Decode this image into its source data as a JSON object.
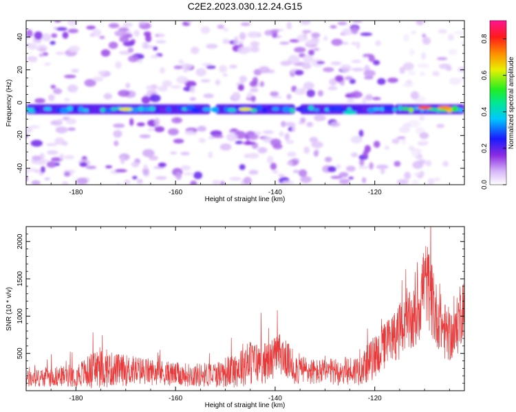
{
  "title": "C2E2.2023.030.12.24.G15",
  "chart_data": [
    {
      "type": "heatmap",
      "xlabel": "Height of straight line (km)",
      "ylabel": "Frequency (Hz)",
      "xlim": [
        -190,
        -102
      ],
      "ylim": [
        -50,
        50
      ],
      "xticks": [
        -180,
        -160,
        -140,
        -120
      ],
      "xtick_labels": [
        "-180",
        "-160",
        "-140",
        "-120"
      ],
      "yticks": [
        -40,
        -20,
        0,
        20,
        40
      ],
      "ytick_labels": [
        "-40",
        "-20",
        "0",
        "20",
        "40"
      ],
      "colorbar": {
        "label": "Normalized spectral amplitude",
        "range": [
          0,
          0.9
        ],
        "ticks": [
          0.0,
          0.2,
          0.4,
          0.6,
          0.8
        ],
        "tick_labels": [
          "0.0",
          "0.2",
          "0.4",
          "0.6",
          "0.8"
        ],
        "colormap": "rainbow (white-purple-blue-cyan-green-yellow-red-magenta)"
      },
      "signal_band": {
        "frequency_hz": -4,
        "width_hz": 6,
        "segments": [
          {
            "x_start": -190,
            "x_end": -153,
            "amplitude": 0.45
          },
          {
            "x_start": -152,
            "x_end": -136,
            "amplitude": 0.5
          },
          {
            "x_start": -135,
            "x_end": -116,
            "amplitude": 0.45
          },
          {
            "x_start": -116,
            "x_end": -102,
            "amplitude": 0.75
          }
        ],
        "peaks": [
          {
            "x": -170,
            "f": -4,
            "amplitude": 0.7
          },
          {
            "x": -146,
            "f": -4,
            "amplitude": 0.7
          },
          {
            "x": -125,
            "f": -6,
            "amplitude": 0.45
          },
          {
            "x": -110,
            "f": -3,
            "amplitude": 0.85
          },
          {
            "x": -106,
            "f": -3,
            "amplitude": 0.8
          }
        ]
      }
    },
    {
      "type": "line",
      "xlabel": "Height of straight line (km)",
      "ylabel": "SNR (10 * v/v)",
      "xlim": [
        -190,
        -102
      ],
      "ylim": [
        0,
        2200
      ],
      "xticks": [
        -180,
        -160,
        -140,
        -120
      ],
      "xtick_labels": [
        "-180",
        "-160",
        "-140",
        "-120"
      ],
      "yticks": [
        500,
        1000,
        1500,
        2000
      ],
      "ytick_labels": [
        "500",
        "1000",
        "1500",
        "2000"
      ],
      "color": "#e83a3a",
      "envelope": {
        "x": [
          -190,
          -186,
          -182,
          -178,
          -176,
          -172,
          -168,
          -164,
          -160,
          -156,
          -152,
          -148,
          -146,
          -142,
          -139,
          -136,
          -132,
          -128,
          -124,
          -122,
          -120,
          -118,
          -116,
          -114,
          -112,
          -111,
          -110,
          -109,
          -108,
          -107,
          -106,
          -105,
          -104,
          -103,
          -102
        ],
        "base": [
          150,
          180,
          200,
          240,
          300,
          280,
          270,
          250,
          220,
          210,
          220,
          280,
          380,
          370,
          500,
          300,
          250,
          250,
          270,
          330,
          450,
          600,
          750,
          850,
          950,
          1200,
          1500,
          1350,
          1050,
          950,
          800,
          750,
          700,
          1000,
          1200
        ],
        "amp": [
          150,
          160,
          180,
          250,
          350,
          280,
          250,
          220,
          200,
          200,
          220,
          300,
          400,
          350,
          350,
          280,
          220,
          230,
          260,
          300,
          380,
          400,
          450,
          500,
          550,
          700,
          700,
          700,
          600,
          500,
          500,
          450,
          400,
          600,
          500
        ]
      }
    }
  ]
}
